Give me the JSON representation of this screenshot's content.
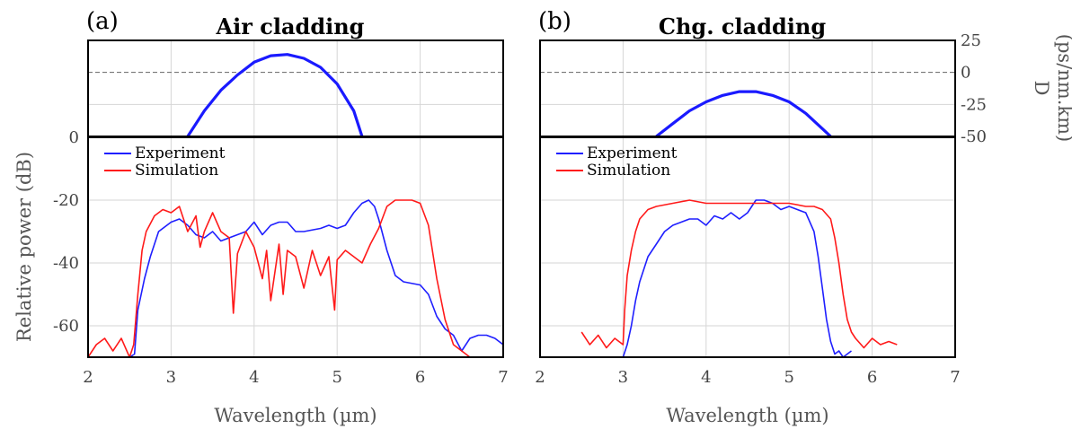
{
  "chart_data": [
    {
      "type": "line",
      "panel": "(a)",
      "title": "Air cladding",
      "dispersion": {
        "ylabel": "D (ps/nm.km)",
        "ylim": [
          -50,
          25
        ],
        "yticks": [
          25,
          0,
          -25,
          -50
        ],
        "zero_line": 0,
        "x": [
          3.2,
          3.4,
          3.6,
          3.8,
          4.0,
          4.2,
          4.4,
          4.6,
          4.8,
          5.0,
          5.2,
          5.3
        ],
        "y": [
          -50,
          -30,
          -14,
          -2,
          8,
          13,
          14,
          11,
          4,
          -9,
          -30,
          -50
        ]
      },
      "spectrum": {
        "xlabel": "Wavelength (µm)",
        "ylabel": "Relative power (dB)",
        "xlim": [
          2,
          7
        ],
        "ylim": [
          -70,
          0
        ],
        "xticks": [
          2,
          3,
          4,
          5,
          6,
          7
        ],
        "yticks": [
          0,
          -20,
          -40,
          -60
        ],
        "grid": true,
        "legend_position": "top-left",
        "series": [
          {
            "name": "Experiment",
            "color": "#1f1fff",
            "x": [
              2.0,
              2.5,
              2.56,
              2.6,
              2.68,
              2.75,
              2.8,
              2.85,
              3.0,
              3.1,
              3.2,
              3.3,
              3.4,
              3.5,
              3.6,
              3.8,
              3.9,
              4.0,
              4.1,
              4.2,
              4.3,
              4.4,
              4.5,
              4.6,
              4.8,
              4.9,
              5.0,
              5.1,
              5.2,
              5.3,
              5.38,
              5.45,
              5.5,
              5.55,
              5.6,
              5.7,
              5.8,
              6.0,
              6.1,
              6.2,
              6.3,
              6.4,
              6.5,
              6.6,
              6.7,
              6.8,
              6.9,
              7.0
            ],
            "y": [
              -70,
              -70,
              -69,
              -55,
              -45,
              -38,
              -34,
              -30,
              -27,
              -26,
              -28,
              -31,
              -32,
              -30,
              -33,
              -31,
              -30,
              -27,
              -31,
              -28,
              -27,
              -27,
              -30,
              -30,
              -29,
              -28,
              -29,
              -28,
              -24,
              -21,
              -20,
              -22,
              -26,
              -31,
              -36,
              -44,
              -46,
              -47,
              -50,
              -57,
              -61,
              -63,
              -68,
              -64,
              -63,
              -63,
              -64,
              -66
            ]
          },
          {
            "name": "Simulation",
            "color": "#ff1a1a",
            "x": [
              2.0,
              2.1,
              2.2,
              2.3,
              2.4,
              2.5,
              2.55,
              2.6,
              2.65,
              2.7,
              2.8,
              2.9,
              3.0,
              3.1,
              3.2,
              3.3,
              3.35,
              3.4,
              3.5,
              3.6,
              3.7,
              3.75,
              3.8,
              3.9,
              4.0,
              4.1,
              4.15,
              4.2,
              4.3,
              4.35,
              4.4,
              4.5,
              4.6,
              4.7,
              4.8,
              4.9,
              4.97,
              5.0,
              5.1,
              5.2,
              5.3,
              5.4,
              5.5,
              5.6,
              5.7,
              5.8,
              5.9,
              6.0,
              6.1,
              6.2,
              6.3,
              6.4,
              6.5,
              6.6,
              6.7,
              6.8,
              7.0
            ],
            "y": [
              -70,
              -66,
              -64,
              -68,
              -64,
              -70,
              -66,
              -50,
              -36,
              -30,
              -25,
              -23,
              -24,
              -22,
              -30,
              -25,
              -35,
              -30,
              -24,
              -30,
              -32,
              -56,
              -37,
              -30,
              -35,
              -45,
              -36,
              -52,
              -34,
              -50,
              -36,
              -38,
              -48,
              -36,
              -44,
              -38,
              -55,
              -39,
              -36,
              -38,
              -40,
              -34,
              -29,
              -22,
              -20,
              -20,
              -20,
              -21,
              -28,
              -45,
              -58,
              -66,
              -68,
              -70,
              -70,
              -70,
              -70
            ]
          }
        ]
      }
    },
    {
      "type": "line",
      "panel": "(b)",
      "title": "Chg. cladding",
      "dispersion": {
        "ylabel": "D (ps/nm.km)",
        "ylim": [
          -50,
          25
        ],
        "yticks": [
          25,
          0,
          -25,
          -50
        ],
        "zero_line": 0,
        "x": [
          3.4,
          3.6,
          3.8,
          4.0,
          4.2,
          4.4,
          4.6,
          4.8,
          5.0,
          5.2,
          5.4,
          5.5
        ],
        "y": [
          -50,
          -40,
          -30,
          -23,
          -18,
          -15,
          -15,
          -18,
          -23,
          -32,
          -44,
          -50
        ]
      },
      "spectrum": {
        "xlabel": "Wavelength (µm)",
        "ylabel": "Relative power (dB)",
        "xlim": [
          2,
          7
        ],
        "ylim": [
          -70,
          0
        ],
        "xticks": [
          2,
          3,
          4,
          5,
          6,
          7
        ],
        "yticks": [
          0,
          -20,
          -40,
          -60
        ],
        "grid": true,
        "legend_position": "top-left",
        "series": [
          {
            "name": "Experiment",
            "color": "#1f1fff",
            "x": [
              3.0,
              3.05,
              3.1,
              3.15,
              3.2,
              3.3,
              3.4,
              3.5,
              3.6,
              3.7,
              3.8,
              3.9,
              4.0,
              4.1,
              4.2,
              4.3,
              4.4,
              4.5,
              4.6,
              4.7,
              4.8,
              4.9,
              5.0,
              5.1,
              5.2,
              5.3,
              5.35,
              5.4,
              5.45,
              5.5,
              5.55,
              5.6,
              5.65,
              5.7,
              5.75
            ],
            "y": [
              -70,
              -66,
              -60,
              -52,
              -46,
              -38,
              -34,
              -30,
              -28,
              -27,
              -26,
              -26,
              -28,
              -25,
              -26,
              -24,
              -26,
              -24,
              -20,
              -20,
              -21,
              -23,
              -22,
              -23,
              -24,
              -30,
              -38,
              -48,
              -58,
              -65,
              -69,
              -68,
              -70,
              -69,
              -68
            ]
          },
          {
            "name": "Simulation",
            "color": "#ff1a1a",
            "x": [
              2.5,
              2.6,
              2.7,
              2.8,
              2.9,
              3.0,
              3.02,
              3.05,
              3.1,
              3.15,
              3.2,
              3.3,
              3.4,
              3.6,
              3.8,
              4.0,
              4.2,
              4.4,
              4.6,
              4.8,
              5.0,
              5.2,
              5.3,
              5.4,
              5.5,
              5.55,
              5.6,
              5.65,
              5.7,
              5.75,
              5.8,
              5.9,
              6.0,
              6.1,
              6.2,
              6.3
            ],
            "y": [
              -62,
              -66,
              -63,
              -67,
              -64,
              -66,
              -55,
              -44,
              -36,
              -30,
              -26,
              -23,
              -22,
              -21,
              -20,
              -21,
              -21,
              -21,
              -21,
              -21,
              -21,
              -22,
              -22,
              -23,
              -26,
              -32,
              -40,
              -50,
              -58,
              -62,
              -64,
              -67,
              -64,
              -66,
              -65,
              -66
            ]
          }
        ]
      }
    }
  ]
}
